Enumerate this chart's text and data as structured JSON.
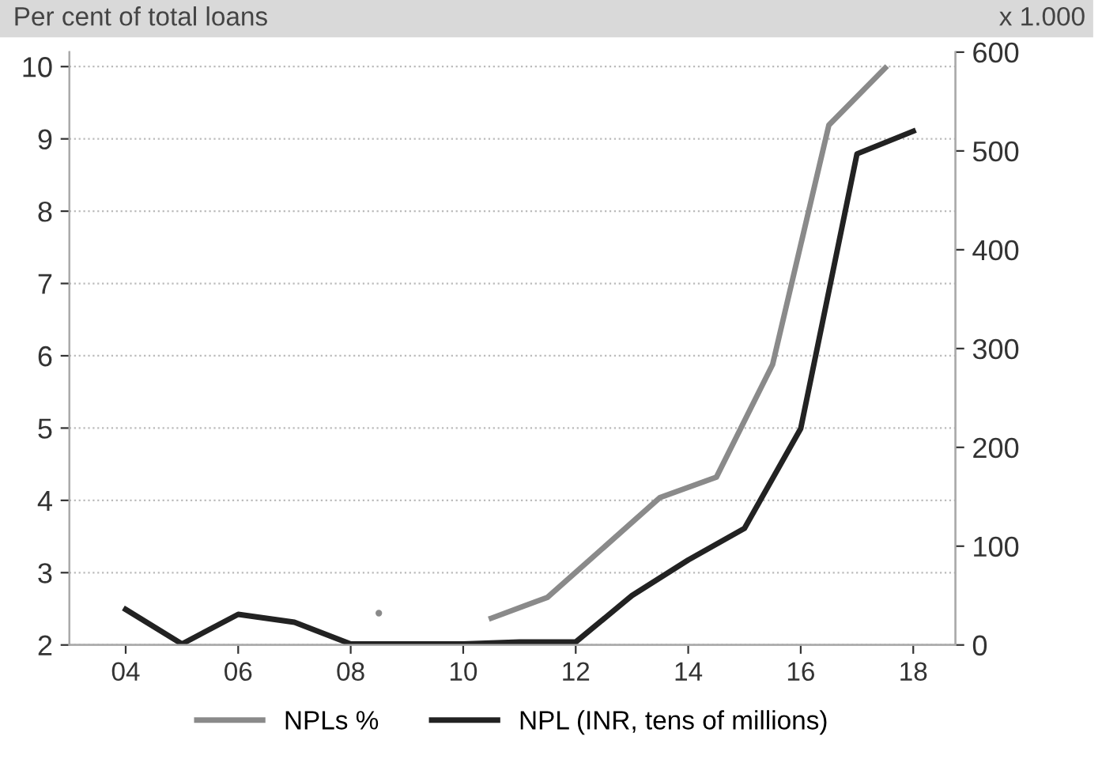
{
  "chart_data": {
    "type": "line",
    "ylabel": "Per cent of total loans",
    "y2label": "x 1.000",
    "x": [
      2004,
      2005,
      2006,
      2007,
      2008,
      2009,
      2010,
      2011,
      2012,
      2013,
      2014,
      2015,
      2016,
      2017,
      2018
    ],
    "series": [
      {
        "name": "NPLs %",
        "color": "#8a8a8a",
        "x": [
          2008.5,
          2009.5,
          2010.5,
          2011.5,
          2012.5,
          2013.5,
          2014.5,
          2015.5,
          2016.5,
          2017.5
        ],
        "values": [
          2.44,
          null,
          2.37,
          2.66,
          3.35,
          4.04,
          4.32,
          5.88,
          9.19,
          9.98
        ]
      },
      {
        "name": "NPL (INR, tens of millions)",
        "color": "#222222",
        "axis": "y2",
        "values": [
          36,
          1,
          31,
          23,
          1,
          1,
          1,
          3,
          3,
          50,
          86,
          118,
          219,
          497,
          520
        ]
      }
    ],
    "xlim": [
      2003,
      2018.75
    ],
    "xticks": [
      {
        "value": 2004,
        "label": "04"
      },
      {
        "value": 2006,
        "label": "06"
      },
      {
        "value": 2008,
        "label": "08"
      },
      {
        "value": 2010,
        "label": "10"
      },
      {
        "value": 2012,
        "label": "12"
      },
      {
        "value": 2014,
        "label": "14"
      },
      {
        "value": 2016,
        "label": "16"
      },
      {
        "value": 2018,
        "label": "18"
      }
    ],
    "ylim": [
      2,
      10.2
    ],
    "yticks": [
      2,
      3,
      4,
      5,
      6,
      7,
      8,
      9,
      10
    ],
    "y2lim": [
      0,
      600
    ],
    "y2ticks": [
      0,
      100,
      200,
      300,
      400,
      500,
      600
    ],
    "grid": "y",
    "legend": "bottom",
    "marker": "none",
    "line_style": "solid"
  }
}
